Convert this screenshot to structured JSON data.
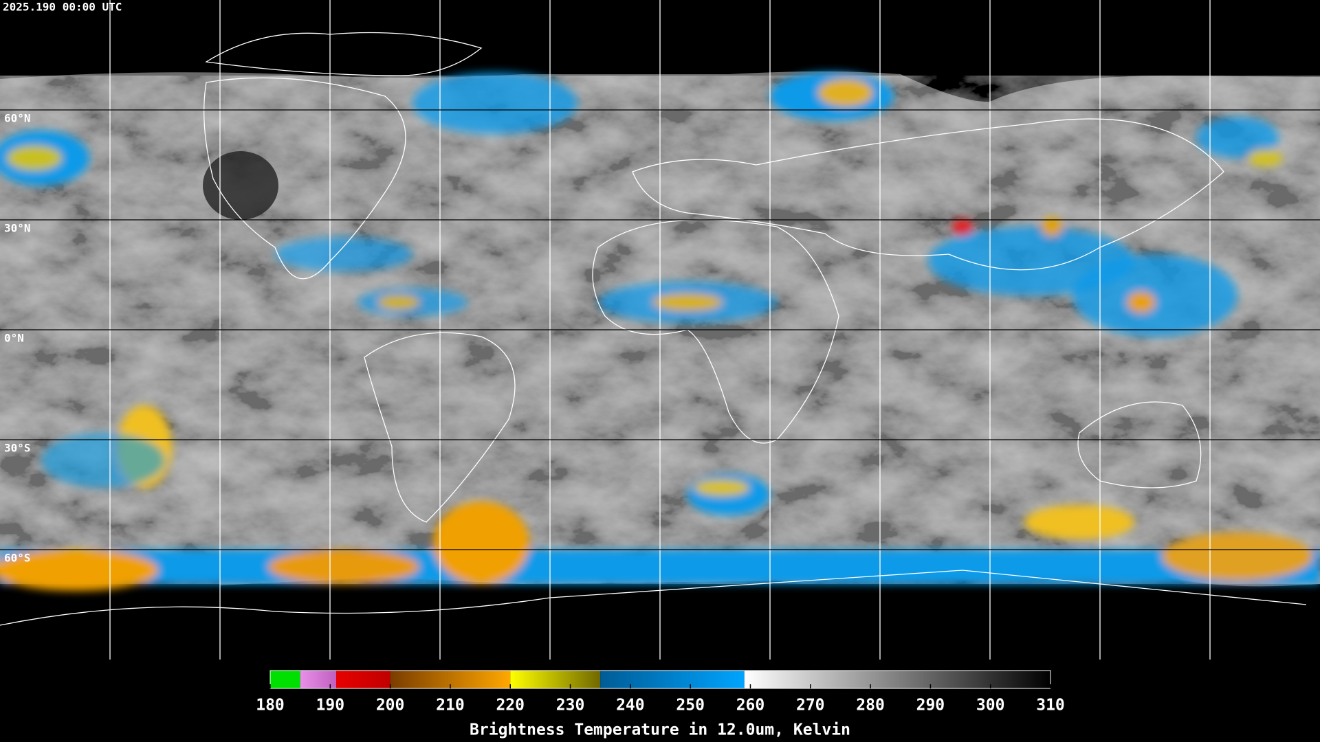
{
  "header": {
    "timestamp": "2025.190 00:00 UTC"
  },
  "map": {
    "lat_lines": [
      {
        "value": 60,
        "label": "60°N"
      },
      {
        "value": 30,
        "label": "30°N"
      },
      {
        "value": 0,
        "label": "0°N"
      },
      {
        "value": -30,
        "label": "30°S"
      },
      {
        "value": -60,
        "label": "60°S"
      }
    ]
  },
  "colorbar": {
    "range": [
      180,
      310
    ],
    "ticks": [
      180,
      190,
      200,
      210,
      220,
      230,
      240,
      250,
      260,
      270,
      280,
      290,
      300,
      310
    ],
    "label": "Brightness Temperature in 12.0um, Kelvin",
    "segments": [
      {
        "from": 180,
        "to": 185,
        "colors": [
          "#00e000",
          "#00e000"
        ]
      },
      {
        "from": 185,
        "to": 191,
        "colors": [
          "#e890e8",
          "#c060c0"
        ]
      },
      {
        "from": 191,
        "to": 200,
        "colors": [
          "#e80000",
          "#c00000"
        ]
      },
      {
        "from": 200,
        "to": 220,
        "colors": [
          "#7a3c00",
          "#ffa800"
        ]
      },
      {
        "from": 220,
        "to": 235,
        "colors": [
          "#ffff00",
          "#706800"
        ]
      },
      {
        "from": 235,
        "to": 259,
        "colors": [
          "#005c96",
          "#00a4ff"
        ]
      },
      {
        "from": 259,
        "to": 310,
        "colors": [
          "#ffffff",
          "#000000"
        ]
      }
    ]
  }
}
